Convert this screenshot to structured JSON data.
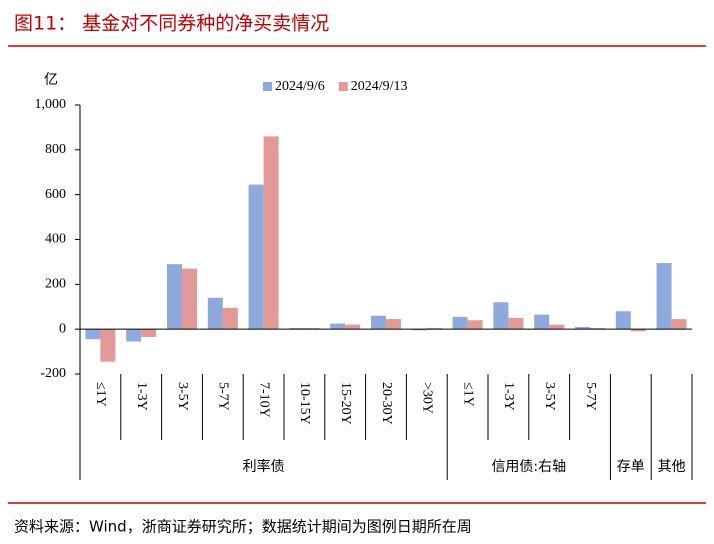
{
  "title": "图11：  基金对不同券种的净买卖情况",
  "source": "资料来源：Wind，浙商证券研究所；数据统计期间为图例日期所在周",
  "chart_data": {
    "type": "bar",
    "y_unit": "亿",
    "groups": [
      {
        "name": "利率债",
        "categories": [
          "≤1Y",
          "1-3Y",
          "3-5Y",
          "5-7Y",
          "7-10Y",
          "10-15Y",
          "15-20Y",
          "20-30Y",
          ">30Y"
        ]
      },
      {
        "name": "信用债:右轴",
        "categories": [
          "≤1Y",
          "1-3Y",
          "3-5Y",
          "5-7Y"
        ]
      },
      {
        "name": "存单",
        "categories": [
          null
        ]
      },
      {
        "name": "其他",
        "categories": [
          null
        ]
      }
    ],
    "series": [
      {
        "name": "2024/9/6",
        "color": "#8eaadc",
        "values": [
          -45,
          -55,
          290,
          140,
          645,
          5,
          25,
          60,
          -5,
          55,
          120,
          65,
          10,
          80,
          295
        ]
      },
      {
        "name": "2024/9/13",
        "color": "#e39a96",
        "values": [
          -145,
          -35,
          270,
          95,
          860,
          5,
          20,
          45,
          5,
          40,
          50,
          20,
          5,
          -10,
          45
        ]
      }
    ],
    "ylim": [
      -200,
      1000
    ],
    "yticks": [
      -200,
      0,
      200,
      400,
      600,
      800,
      {
        "value": 1000,
        "label": "1,000"
      }
    ]
  }
}
